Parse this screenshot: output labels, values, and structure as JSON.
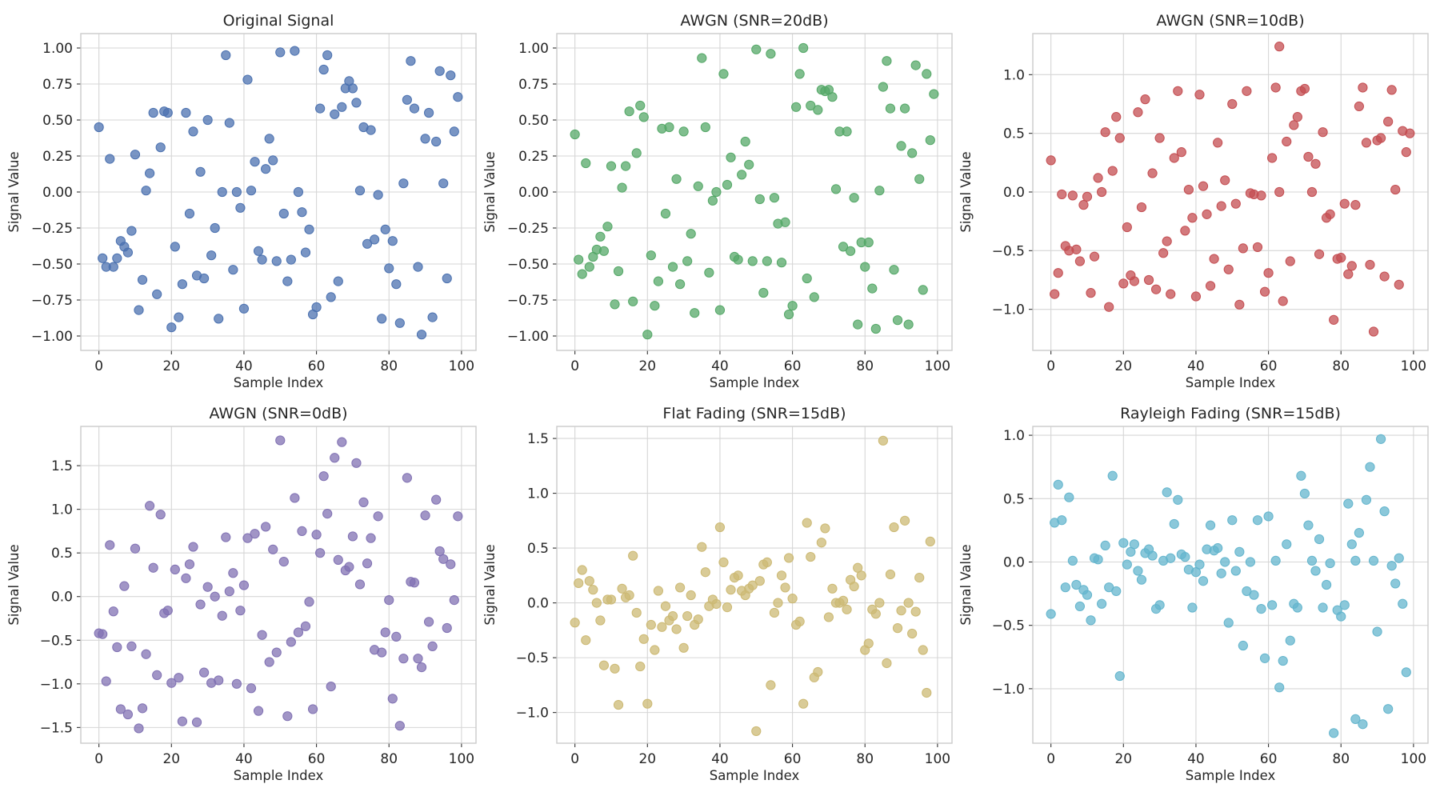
{
  "chart_data": [
    {
      "type": "scatter",
      "title": "Original Signal",
      "xlabel": "Sample Index",
      "ylabel": "Signal Value",
      "color": "#4c72b0",
      "xlim": [
        -5,
        104
      ],
      "ylim": [
        -1.1,
        1.1
      ],
      "xticks": [
        0,
        20,
        40,
        60,
        80,
        100
      ],
      "xtick_labels": [
        "0",
        "20",
        "40",
        "60",
        "80",
        "100"
      ],
      "yticks": [
        -1.0,
        -0.75,
        -0.5,
        -0.25,
        0.0,
        0.25,
        0.5,
        0.75,
        1.0
      ],
      "ytick_labels": [
        "−1.00",
        "−0.75",
        "−0.50",
        "−0.25",
        "0.00",
        "0.25",
        "0.50",
        "0.75",
        "1.00"
      ],
      "grid": true,
      "series": [
        {
          "values": [
            0.45,
            -0.46,
            -0.52,
            0.23,
            -0.52,
            -0.46,
            -0.34,
            -0.38,
            -0.42,
            -0.27,
            0.26,
            -0.82,
            -0.61,
            0.01,
            0.13,
            0.55,
            -0.71,
            0.31,
            0.56,
            0.55,
            -0.94,
            -0.38,
            -0.87,
            -0.64,
            0.55,
            -0.15,
            0.42,
            -0.58,
            0.14,
            -0.6,
            0.5,
            -0.44,
            -0.25,
            -0.88,
            -0.0,
            0.95,
            0.48,
            -0.54,
            0.0,
            -0.11,
            -0.81,
            0.78,
            0.01,
            0.21,
            -0.41,
            -0.47,
            0.16,
            0.37,
            0.22,
            -0.48,
            0.97,
            -0.15,
            -0.62,
            -0.47,
            0.98,
            -0.0,
            -0.14,
            -0.42,
            -0.26,
            -0.85,
            -0.8,
            0.58,
            0.85,
            0.95,
            -0.73,
            0.54,
            -0.62,
            0.59,
            0.72,
            0.77,
            0.72,
            0.62,
            0.01,
            0.45,
            -0.36,
            0.43,
            -0.33,
            -0.02,
            -0.88,
            -0.26,
            -0.53,
            -0.34,
            -0.64,
            -0.91,
            0.06,
            0.64,
            0.91,
            0.58,
            -0.52,
            -0.99,
            0.37,
            0.55,
            -0.87,
            0.35,
            0.84,
            0.06,
            -0.6,
            0.81,
            0.42,
            0.66
          ]
        }
      ]
    },
    {
      "type": "scatter",
      "title": "AWGN (SNR=20dB)",
      "xlabel": "Sample Index",
      "ylabel": "Signal Value",
      "color": "#55a868",
      "xlim": [
        -5,
        104
      ],
      "ylim": [
        -1.1,
        1.1
      ],
      "xticks": [
        0,
        20,
        40,
        60,
        80,
        100
      ],
      "xtick_labels": [
        "0",
        "20",
        "40",
        "60",
        "80",
        "100"
      ],
      "yticks": [
        -1.0,
        -0.75,
        -0.5,
        -0.25,
        0.0,
        0.25,
        0.5,
        0.75,
        1.0
      ],
      "ytick_labels": [
        "−1.00",
        "−0.75",
        "−0.50",
        "−0.25",
        "0.00",
        "0.25",
        "0.50",
        "0.75",
        "1.00"
      ],
      "grid": true,
      "series": [
        {
          "values": [
            0.4,
            -0.47,
            -0.57,
            0.2,
            -0.52,
            -0.45,
            -0.4,
            -0.31,
            -0.41,
            -0.24,
            0.18,
            -0.78,
            -0.55,
            0.03,
            0.18,
            0.56,
            -0.76,
            0.27,
            0.6,
            0.52,
            -0.99,
            -0.44,
            -0.79,
            -0.62,
            0.44,
            -0.15,
            0.45,
            -0.52,
            0.09,
            -0.64,
            0.42,
            -0.48,
            -0.29,
            -0.84,
            0.04,
            0.93,
            0.45,
            -0.56,
            -0.06,
            0.0,
            -0.82,
            0.82,
            0.05,
            0.24,
            -0.45,
            -0.47,
            0.12,
            0.35,
            0.19,
            -0.48,
            0.99,
            -0.05,
            -0.7,
            -0.48,
            0.96,
            -0.04,
            -0.22,
            -0.49,
            -0.21,
            -0.85,
            -0.79,
            0.59,
            0.82,
            1.0,
            -0.6,
            0.6,
            -0.73,
            0.57,
            0.71,
            0.7,
            0.71,
            0.66,
            0.02,
            0.42,
            -0.38,
            0.42,
            -0.41,
            -0.04,
            -0.92,
            -0.35,
            -0.52,
            -0.35,
            -0.67,
            -0.95,
            0.01,
            0.73,
            0.91,
            0.58,
            -0.54,
            -0.89,
            0.32,
            0.58,
            -0.92,
            0.27,
            0.88,
            0.09,
            -0.68,
            0.82,
            0.36,
            0.68
          ]
        }
      ]
    },
    {
      "type": "scatter",
      "title": "AWGN (SNR=10dB)",
      "xlabel": "Sample Index",
      "ylabel": "Signal Value",
      "color": "#c44e52",
      "xlim": [
        -5,
        104
      ],
      "ylim": [
        -1.35,
        1.35
      ],
      "xticks": [
        0,
        20,
        40,
        60,
        80,
        100
      ],
      "xtick_labels": [
        "0",
        "20",
        "40",
        "60",
        "80",
        "100"
      ],
      "yticks": [
        -1.0,
        -0.5,
        0.0,
        0.5,
        1.0
      ],
      "ytick_labels": [
        "−1.0",
        "−0.5",
        "0.0",
        "0.5",
        "1.0"
      ],
      "grid": true,
      "series": [
        {
          "values": [
            0.27,
            -0.87,
            -0.69,
            -0.02,
            -0.46,
            -0.5,
            -0.03,
            -0.49,
            -0.59,
            -0.11,
            -0.04,
            -0.86,
            -0.55,
            0.12,
            0.0,
            0.51,
            -0.98,
            0.18,
            0.64,
            0.46,
            -0.78,
            -0.3,
            -0.71,
            -0.76,
            0.68,
            -0.13,
            0.79,
            -0.75,
            0.16,
            -0.83,
            0.46,
            -0.52,
            -0.42,
            -0.87,
            0.29,
            0.86,
            0.34,
            -0.33,
            0.02,
            -0.22,
            -0.89,
            0.83,
            0.05,
            -0.19,
            -0.8,
            -0.57,
            0.42,
            -0.12,
            0.1,
            -0.66,
            0.75,
            -0.1,
            -0.96,
            -0.48,
            0.86,
            -0.01,
            -0.02,
            -0.47,
            -0.03,
            -0.85,
            -0.69,
            0.29,
            0.89,
            -0.0,
            -0.93,
            0.43,
            -0.59,
            0.57,
            0.64,
            0.86,
            0.88,
            0.3,
            0.0,
            0.24,
            -0.53,
            0.51,
            -0.22,
            -0.19,
            -1.09,
            -0.57,
            -0.56,
            -0.1,
            -0.7,
            -0.63,
            -0.11,
            0.73,
            0.89,
            0.42,
            -0.62,
            -1.19,
            0.44,
            0.46,
            -0.72,
            0.6,
            0.87,
            0.02,
            -0.79,
            0.52,
            0.34,
            0.5
          ]
        }
      ],
      "extra_points": [
        {
          "x": 63,
          "y": 1.24
        }
      ]
    },
    {
      "type": "scatter",
      "title": "AWGN (SNR=0dB)",
      "xlabel": "Sample Index",
      "ylabel": "Signal Value",
      "color": "#8172b3",
      "xlim": [
        -5,
        104
      ],
      "ylim": [
        -1.68,
        1.95
      ],
      "xticks": [
        0,
        20,
        40,
        60,
        80,
        100
      ],
      "xtick_labels": [
        "0",
        "20",
        "40",
        "60",
        "80",
        "100"
      ],
      "yticks": [
        -1.5,
        -1.0,
        -0.5,
        0.0,
        0.5,
        1.0,
        1.5
      ],
      "ytick_labels": [
        "−1.5",
        "−1.0",
        "−0.5",
        "0.0",
        "0.5",
        "1.0",
        "1.5"
      ],
      "grid": true,
      "series": [
        {
          "values": [
            -0.42,
            -0.43,
            -0.97,
            0.59,
            -0.17,
            -0.58,
            -1.29,
            0.12,
            -1.35,
            -0.57,
            0.55,
            -1.51,
            -1.28,
            -0.66,
            1.04,
            0.33,
            -0.9,
            0.94,
            -0.19,
            -0.16,
            -0.99,
            0.31,
            -0.93,
            -1.43,
            0.21,
            0.37,
            0.57,
            -1.44,
            -0.09,
            -0.87,
            0.11,
            -0.99,
            0.0,
            -0.96,
            -0.22,
            0.68,
            0.06,
            0.27,
            -1.0,
            -0.16,
            0.13,
            0.67,
            -1.05,
            0.72,
            -1.31,
            -0.44,
            0.8,
            -0.75,
            0.54,
            -0.64,
            1.79,
            0.4,
            -1.37,
            -0.52,
            1.13,
            -0.41,
            0.75,
            -0.34,
            -0.06,
            -1.29,
            0.71,
            0.5,
            1.38,
            0.95,
            -1.03,
            1.59,
            0.42,
            1.77,
            0.3,
            0.34,
            0.69,
            1.53,
            0.14,
            1.08,
            0.38,
            0.67,
            -0.61,
            0.92,
            -0.64,
            -0.41,
            -0.04,
            -1.17,
            -0.46,
            -1.48,
            -0.71,
            1.36,
            0.17,
            0.16,
            -0.71,
            -0.81,
            0.93,
            -0.29,
            -0.57,
            1.11,
            0.52,
            0.43,
            -0.36,
            0.37,
            -0.04,
            0.92
          ]
        }
      ]
    },
    {
      "type": "scatter",
      "title": "Flat Fading (SNR=15dB)",
      "xlabel": "Sample Index",
      "ylabel": "Signal Value",
      "color": "#ccb974",
      "xlim": [
        -5,
        104
      ],
      "ylim": [
        -1.28,
        1.61
      ],
      "xticks": [
        0,
        20,
        40,
        60,
        80,
        100
      ],
      "xtick_labels": [
        "0",
        "20",
        "40",
        "60",
        "80",
        "100"
      ],
      "yticks": [
        -1.0,
        -0.5,
        0.0,
        0.5,
        1.0,
        1.5
      ],
      "ytick_labels": [
        "−1.0",
        "−0.5",
        "0.0",
        "0.5",
        "1.0",
        "1.5"
      ],
      "grid": true,
      "series": [
        {
          "values": [
            -0.18,
            0.18,
            0.3,
            -0.34,
            0.2,
            0.12,
            0.0,
            -0.16,
            -0.57,
            0.03,
            0.03,
            -0.6,
            -0.93,
            0.13,
            0.05,
            0.07,
            0.43,
            -0.09,
            -0.58,
            -0.33,
            -0.92,
            -0.2,
            -0.43,
            0.11,
            -0.22,
            -0.03,
            -0.16,
            -0.12,
            -0.24,
            0.14,
            -0.41,
            -0.12,
            0.07,
            -0.2,
            -0.15,
            0.51,
            0.28,
            -0.03,
            0.03,
            -0.01,
            0.69,
            0.37,
            -0.04,
            0.12,
            0.23,
            0.25,
            0.11,
            0.07,
            0.13,
            0.16,
            -1.17,
            0.2,
            0.35,
            0.37,
            -0.75,
            -0.09,
            0.0,
            0.25,
            0.14,
            0.41,
            0.04,
            -0.2,
            -0.17,
            -0.92,
            0.73,
            0.42,
            -0.68,
            -0.63,
            0.55,
            0.68,
            -0.13,
            0.13,
            0.0,
            0.0,
            0.02,
            -0.06,
            0.21,
            0.15,
            0.32,
            0.25,
            -0.43,
            -0.37,
            -0.06,
            -0.1,
            0.0,
            1.48,
            -0.55,
            0.26,
            0.69,
            -0.23,
            -0.07,
            0.75,
            0.0,
            -0.28,
            -0.08,
            0.23,
            -0.43,
            -0.82,
            0.56
          ]
        }
      ]
    },
    {
      "type": "scatter",
      "title": "Rayleigh Fading (SNR=15dB)",
      "xlabel": "Sample Index",
      "ylabel": "Signal Value",
      "color": "#64b5cd",
      "xlim": [
        -5,
        104
      ],
      "ylim": [
        -1.43,
        1.07
      ],
      "xticks": [
        0,
        20,
        40,
        60,
        80,
        100
      ],
      "xtick_labels": [
        "0",
        "20",
        "40",
        "60",
        "80",
        "100"
      ],
      "yticks": [
        -1.0,
        -0.5,
        0.0,
        0.5,
        1.0
      ],
      "ytick_labels": [
        "−1.0",
        "−0.5",
        "0.0",
        "0.5",
        "1.0"
      ],
      "grid": true,
      "series": [
        {
          "values": [
            -0.41,
            0.31,
            0.61,
            0.33,
            -0.2,
            0.51,
            0.01,
            -0.18,
            -0.35,
            -0.22,
            -0.26,
            -0.46,
            0.03,
            0.02,
            -0.33,
            0.13,
            -0.2,
            0.68,
            -0.23,
            -0.9,
            0.15,
            -0.02,
            0.08,
            0.14,
            -0.07,
            -0.14,
            0.07,
            0.1,
            0.05,
            -0.37,
            -0.34,
            0.01,
            0.55,
            0.03,
            0.3,
            0.49,
            0.06,
            0.04,
            -0.06,
            -0.36,
            -0.08,
            -0.02,
            -0.15,
            0.1,
            0.29,
            0.09,
            0.11,
            -0.09,
            0.0,
            -0.48,
            0.33,
            -0.07,
            0.08,
            -0.66,
            -0.23,
            0.0,
            -0.26,
            0.33,
            -0.37,
            -0.76,
            0.36,
            -0.34,
            0.01,
            -0.99,
            -0.78,
            0.14,
            -0.62,
            -0.33,
            -0.36,
            0.68,
            0.54,
            0.29,
            0.01,
            -0.07,
            0.18,
            -0.36,
            -0.18,
            -0.01,
            -1.35,
            -0.38,
            -0.43,
            -0.34,
            0.46,
            0.14,
            0.01,
            0.23,
            -1.28,
            0.49,
            0.75,
            0.01,
            -0.55,
            0.97,
            0.4,
            -1.16,
            -0.03,
            -0.17,
            0.03,
            -0.33,
            -0.87
          ]
        }
      ],
      "extra_points": [
        {
          "x": 84,
          "y": -1.24
        }
      ]
    }
  ]
}
